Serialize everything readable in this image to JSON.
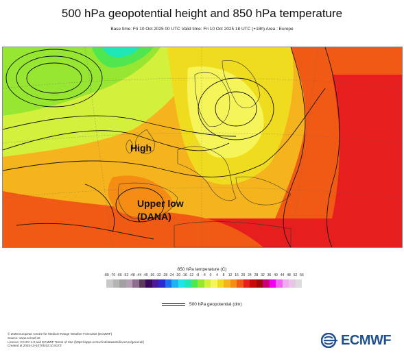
{
  "header": {
    "title": "500 hPa geopotential height and 850 hPa temperature",
    "subtitle": "Base time: Fri 10 Oct 2025 00 UTC Valid time: Fri 10 Oct 2025 18 UTC (+18h) Area : Europe"
  },
  "map": {
    "annotations": {
      "high": "High",
      "upper_low_line1": "Upper low",
      "upper_low_line2": "(DANA)"
    }
  },
  "legend": {
    "title": "850 hPa temperature (C)",
    "ticks": [
      "-80",
      "-70",
      "-66",
      "-52",
      "-48",
      "-44",
      "-40",
      "-36",
      "-32",
      "-28",
      "-24",
      "-20",
      "-16",
      "-12",
      "-8",
      "-4",
      "0",
      "4",
      "8",
      "12",
      "16",
      "20",
      "24",
      "28",
      "32",
      "36",
      "40",
      "44",
      "48",
      "52",
      "56"
    ],
    "colors": [
      "#c8c8c8",
      "#b4b4b4",
      "#a0a0a0",
      "#b59fb5",
      "#8f6f8f",
      "#5a3a5a",
      "#3a0a5a",
      "#4a1a9a",
      "#2a2ad0",
      "#1e6ef0",
      "#1eb4f0",
      "#1ee6e6",
      "#1ee6b4",
      "#50e650",
      "#96e632",
      "#d2f03c",
      "#f5f55a",
      "#f0dc1e",
      "#f5b41e",
      "#f58c14",
      "#f05a14",
      "#e61e1e",
      "#c80a0a",
      "#a00a0a",
      "#c8007a",
      "#f000f0",
      "#f064f0",
      "#f0aaf0",
      "#e6c8e6",
      "#dcdcdc"
    ],
    "contour_label": "500 hPa geopotential (dm)"
  },
  "footer": {
    "lines": [
      "© 2025 European Centre for Medium-Range Weather Forecasts (ECMWF)",
      "Source: www.ecmwf.int",
      "Licence: CC BY 4.0 and ECMWF Terms of Use (https://apps.ecmwf.int/datasets/licences/general/)",
      "Created at 2025-10-10T05:52:10.817Z"
    ]
  },
  "logo": {
    "text": "ECMWF"
  }
}
